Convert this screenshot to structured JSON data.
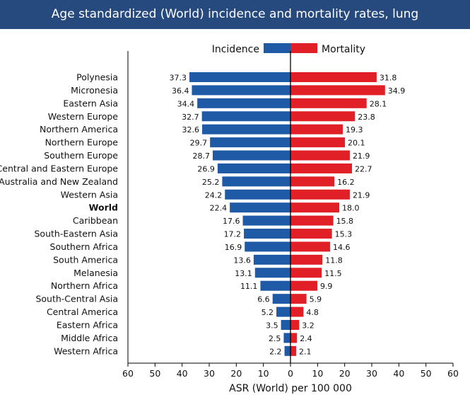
{
  "header": {
    "title": "Age standardized (World) incidence and mortality rates, lung"
  },
  "colors": {
    "header_bg": "#274a7e",
    "incidence": "#1f5aa6",
    "mortality": "#e11f26",
    "axis": "#000000"
  },
  "chart_data": {
    "type": "bar",
    "orientation": "horizontal-butterfly",
    "title": "Age standardized (World) incidence and mortality rates, lung",
    "xlabel": "ASR (World) per 100 000",
    "xlim": [
      -60,
      60
    ],
    "xticks": [
      -60,
      -50,
      -40,
      -30,
      -20,
      -10,
      0,
      10,
      20,
      30,
      40,
      50,
      60
    ],
    "xtick_labels": [
      "60",
      "50",
      "40",
      "30",
      "20",
      "10",
      "0",
      "10",
      "20",
      "30",
      "40",
      "50",
      "60"
    ],
    "legend": {
      "position": "top-center",
      "entries": [
        "Incidence",
        "Mortality"
      ]
    },
    "highlight": "World",
    "categories": [
      "Polynesia",
      "Micronesia",
      "Eastern Asia",
      "Western Europe",
      "Northern America",
      "Northern Europe",
      "Southern Europe",
      "Central and Eastern Europe",
      "Australia and New Zealand",
      "Western Asia",
      "World",
      "Caribbean",
      "South-Eastern Asia",
      "Southern Africa",
      "South America",
      "Melanesia",
      "Northern Africa",
      "South-Central Asia",
      "Central America",
      "Eastern Africa",
      "Middle Africa",
      "Western Africa"
    ],
    "series": [
      {
        "name": "Incidence",
        "side": "left",
        "values": [
          37.3,
          36.4,
          34.4,
          32.7,
          32.6,
          29.7,
          28.7,
          26.9,
          25.2,
          24.2,
          22.4,
          17.6,
          17.2,
          16.9,
          13.6,
          13.1,
          11.1,
          6.6,
          5.2,
          3.5,
          2.5,
          2.2
        ]
      },
      {
        "name": "Mortality",
        "side": "right",
        "values": [
          31.8,
          34.9,
          28.1,
          23.8,
          19.3,
          20.1,
          21.9,
          22.7,
          16.2,
          21.9,
          18.0,
          15.8,
          15.3,
          14.6,
          11.8,
          11.5,
          9.9,
          5.9,
          4.8,
          3.2,
          2.4,
          2.1
        ]
      }
    ]
  }
}
